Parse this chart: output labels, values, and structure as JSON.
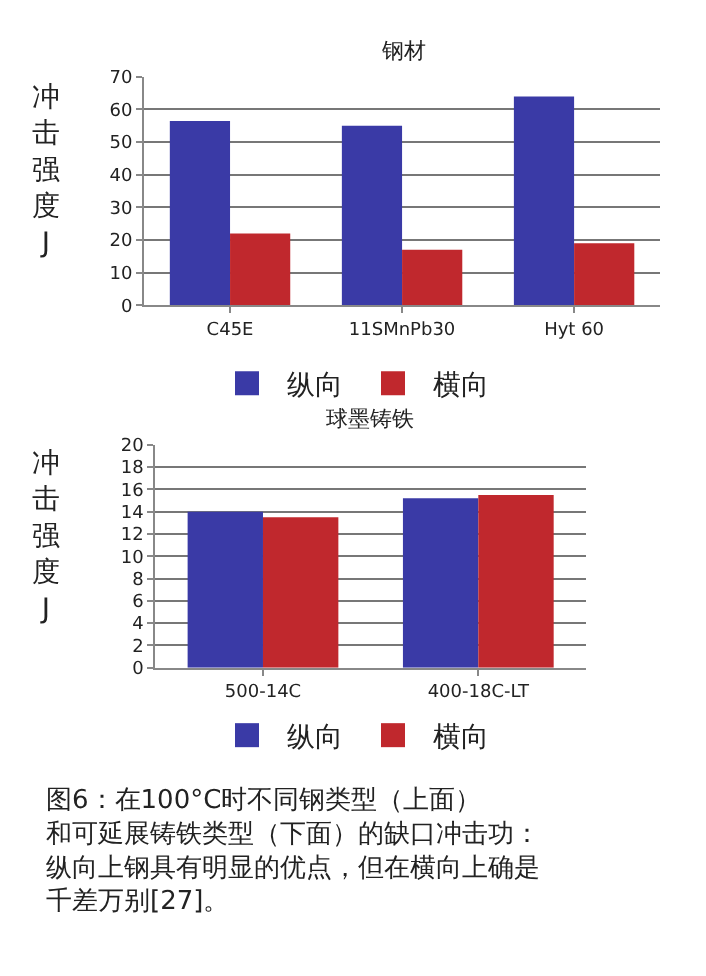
{
  "chart_data": [
    {
      "type": "bar",
      "title": "钢材",
      "ylabel": "冲击强度J",
      "categories": [
        "C45E",
        "11SMnPb30",
        "Hyt 60"
      ],
      "series": [
        {
          "name": "纵向",
          "color": "#3a3aa6",
          "values": [
            56.5,
            55,
            64
          ]
        },
        {
          "name": "横向",
          "color": "#c0282d",
          "values": [
            22,
            17,
            19
          ]
        }
      ],
      "ylim": [
        0,
        70
      ],
      "yticks": [
        0,
        10,
        20,
        30,
        40,
        50,
        60,
        70
      ],
      "grid": "y",
      "legend": "bottom"
    },
    {
      "type": "bar",
      "title": "球墨铸铁",
      "ylabel": "冲击强度J",
      "categories": [
        "500-14C",
        "400-18C-LT"
      ],
      "series": [
        {
          "name": "纵向",
          "color": "#3a3aa6",
          "values": [
            14,
            15.2
          ]
        },
        {
          "name": "横向",
          "color": "#c0282d",
          "values": [
            13.5,
            15.5
          ]
        }
      ],
      "ylim": [
        0,
        20
      ],
      "yticks": [
        0,
        2,
        4,
        6,
        8,
        10,
        12,
        14,
        16,
        18,
        20
      ],
      "grid": "y",
      "legend": "bottom",
      "annotations": [
        "图6：在100°C时不同钢类型（上面）和可延展铸铁类型（下面）的缺口冲击功：纵向上钢具有明显的优点，但在横向上确是千差万别[27]。"
      ]
    }
  ]
}
